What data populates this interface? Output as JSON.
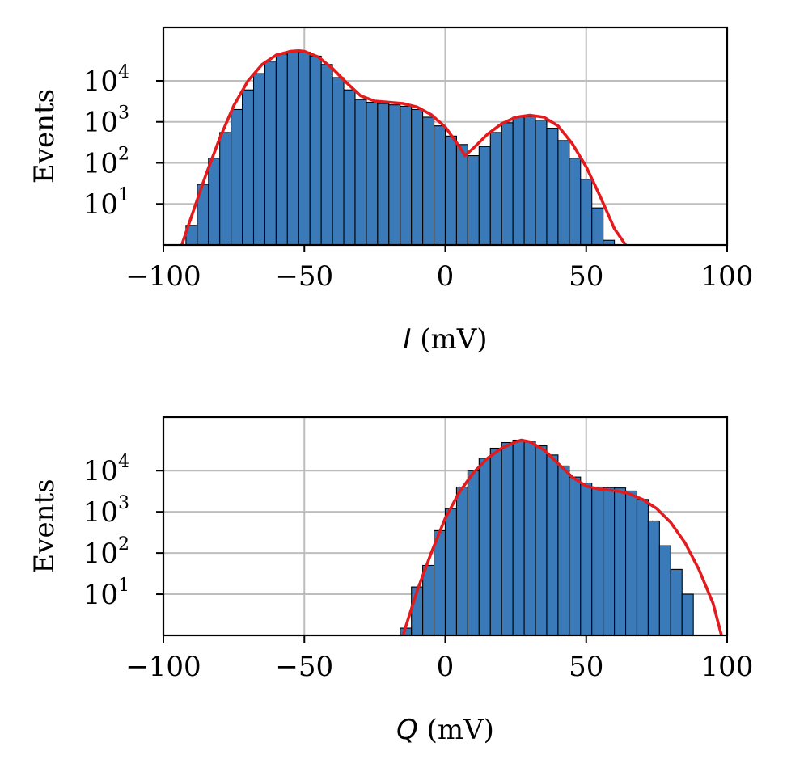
{
  "chart_data": [
    {
      "type": "bar",
      "title": "",
      "xlabel_var": "I",
      "xlabel_unit": " (mV)",
      "ylabel": "Events",
      "xlim": [
        -100,
        100
      ],
      "ylim_log10": [
        0,
        5.3
      ],
      "yscale": "log",
      "grid": true,
      "xticks": [
        {
          "value": -100,
          "label": "−100"
        },
        {
          "value": -50,
          "label": "−50"
        },
        {
          "value": 0,
          "label": "0"
        },
        {
          "value": 50,
          "label": "50"
        },
        {
          "value": 100,
          "label": "100"
        }
      ],
      "yticks": [
        {
          "exp": 1,
          "base": "10",
          "sup": "1"
        },
        {
          "exp": 2,
          "base": "10",
          "sup": "2"
        },
        {
          "exp": 3,
          "base": "10",
          "sup": "3"
        },
        {
          "exp": 4,
          "base": "10",
          "sup": "4"
        }
      ],
      "bar_color": "#3a7ab8",
      "fit_color": "#e41a1c",
      "bin_width": 4,
      "bin_starts": [
        -92,
        -88,
        -84,
        -80,
        -76,
        -72,
        -68,
        -64,
        -60,
        -56,
        -52,
        -48,
        -44,
        -40,
        -36,
        -32,
        -28,
        -24,
        -20,
        -16,
        -12,
        -8,
        -4,
        0,
        4,
        8,
        12,
        16,
        20,
        24,
        28,
        32,
        36,
        40,
        44,
        48,
        52,
        56
      ],
      "counts": [
        3,
        30,
        130,
        550,
        2000,
        6000,
        15000,
        30000,
        45000,
        52000,
        50000,
        40000,
        25000,
        12000,
        6000,
        3500,
        3000,
        2800,
        2600,
        2400,
        2000,
        1300,
        800,
        450,
        280,
        150,
        250,
        550,
        950,
        1300,
        1350,
        1100,
        700,
        350,
        130,
        40,
        8,
        1.3
      ],
      "fit_curve": [
        [
          -93.5,
          1
        ],
        [
          -90,
          5
        ],
        [
          -85,
          50
        ],
        [
          -80,
          400
        ],
        [
          -75,
          2500
        ],
        [
          -70,
          10000
        ],
        [
          -65,
          25000
        ],
        [
          -60,
          42000
        ],
        [
          -55,
          52000
        ],
        [
          -52,
          54000
        ],
        [
          -50,
          52000
        ],
        [
          -45,
          38000
        ],
        [
          -40,
          20000
        ],
        [
          -35,
          9000
        ],
        [
          -30,
          4300
        ],
        [
          -25,
          3200
        ],
        [
          -20,
          3000
        ],
        [
          -15,
          2800
        ],
        [
          -10,
          2300
        ],
        [
          -5,
          1500
        ],
        [
          0,
          750
        ],
        [
          5,
          250
        ],
        [
          7,
          150
        ],
        [
          10,
          230
        ],
        [
          15,
          500
        ],
        [
          20,
          900
        ],
        [
          25,
          1300
        ],
        [
          30,
          1450
        ],
        [
          35,
          1300
        ],
        [
          40,
          800
        ],
        [
          45,
          300
        ],
        [
          50,
          80
        ],
        [
          55,
          15
        ],
        [
          60,
          2.5
        ],
        [
          64,
          1
        ]
      ]
    },
    {
      "type": "bar",
      "title": "",
      "xlabel_var": "Q",
      "xlabel_unit": " (mV)",
      "ylabel": "Events",
      "xlim": [
        -100,
        100
      ],
      "ylim_log10": [
        0,
        5.3
      ],
      "yscale": "log",
      "grid": true,
      "xticks": [
        {
          "value": -100,
          "label": "−100"
        },
        {
          "value": -50,
          "label": "−50"
        },
        {
          "value": 0,
          "label": "0"
        },
        {
          "value": 50,
          "label": "50"
        },
        {
          "value": 100,
          "label": "100"
        }
      ],
      "yticks": [
        {
          "exp": 1,
          "base": "10",
          "sup": "1"
        },
        {
          "exp": 2,
          "base": "10",
          "sup": "2"
        },
        {
          "exp": 3,
          "base": "10",
          "sup": "3"
        },
        {
          "exp": 4,
          "base": "10",
          "sup": "4"
        }
      ],
      "bar_color": "#3a7ab8",
      "fit_color": "#e41a1c",
      "bin_width": 4,
      "bin_starts": [
        -16,
        -12,
        -8,
        -4,
        0,
        4,
        8,
        12,
        16,
        20,
        24,
        28,
        32,
        36,
        40,
        44,
        48,
        52,
        56,
        60,
        64,
        68,
        72,
        76,
        80,
        84
      ],
      "counts": [
        1.5,
        15,
        50,
        350,
        1200,
        4000,
        10000,
        20000,
        35000,
        48000,
        55000,
        52000,
        40000,
        24000,
        13000,
        7000,
        5000,
        4000,
        3900,
        3800,
        3200,
        2000,
        600,
        150,
        40,
        10
      ],
      "fit_curve": [
        [
          -15,
          1
        ],
        [
          -10,
          12
        ],
        [
          -5,
          100
        ],
        [
          0,
          700
        ],
        [
          5,
          3000
        ],
        [
          10,
          9000
        ],
        [
          15,
          20000
        ],
        [
          20,
          35000
        ],
        [
          25,
          50000
        ],
        [
          27,
          55000
        ],
        [
          30,
          50000
        ],
        [
          35,
          32000
        ],
        [
          40,
          15000
        ],
        [
          45,
          7000
        ],
        [
          50,
          4200
        ],
        [
          55,
          3500
        ],
        [
          60,
          3300
        ],
        [
          65,
          2800
        ],
        [
          70,
          2000
        ],
        [
          75,
          1200
        ],
        [
          80,
          550
        ],
        [
          85,
          180
        ],
        [
          90,
          40
        ],
        [
          95,
          6
        ],
        [
          98,
          1
        ]
      ]
    }
  ]
}
